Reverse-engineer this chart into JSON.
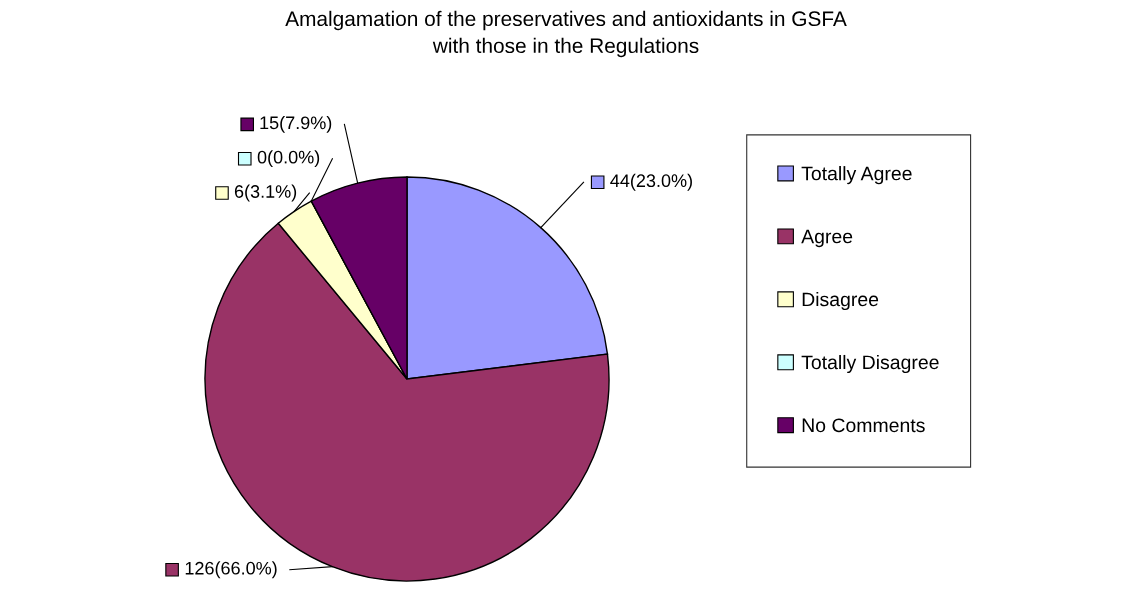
{
  "chart_data": {
    "type": "pie",
    "title": "Amalgamation of the preservatives and antioxidants in GSFA\nwith those in the Regulations",
    "categories": [
      "Totally Agree",
      "Agree",
      "Disagree",
      "Totally Disagree",
      "No Comments"
    ],
    "values": [
      44,
      126,
      6,
      0,
      15
    ],
    "colors": [
      "#9999ff",
      "#993366",
      "#ffffcc",
      "#ccffff",
      "#660066"
    ],
    "value_labels": [
      "44(23.0%)",
      "126(66.0%)",
      "6(3.1%)",
      "0(0.0%)",
      "15(7.9%)"
    ],
    "legend": "right"
  }
}
